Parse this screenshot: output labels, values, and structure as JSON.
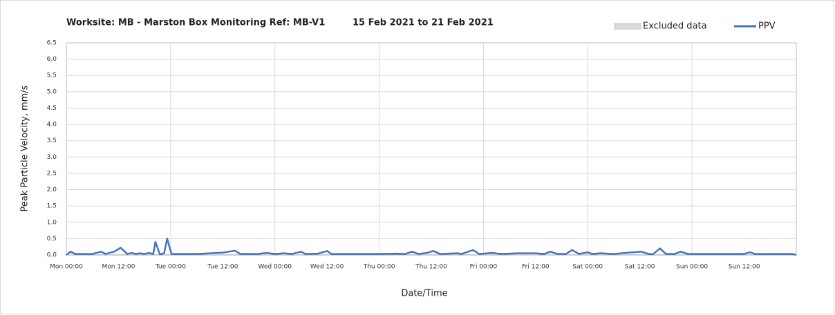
{
  "chart_data": {
    "type": "line",
    "title": "Worksite: MB - Marston Box",
    "subtitle": "Monitoring Ref: MB-V1",
    "date_range": "15 Feb 2021 to 21 Feb 2021",
    "xlabel": "Date/Time",
    "ylabel": "Peak Particle Velocity, mm/s",
    "excluded": {
      "name": "Excluded data",
      "color": "#d9d9d9"
    },
    "xlim": [
      0,
      168
    ],
    "xticks": [
      {
        "value": 0,
        "label": "Mon 00:00"
      },
      {
        "value": 12,
        "label": "Mon 12:00"
      },
      {
        "value": 24,
        "label": "Tue 00:00"
      },
      {
        "value": 36,
        "label": "Tue 12:00"
      },
      {
        "value": 48,
        "label": "Wed 00:00"
      },
      {
        "value": 60,
        "label": "Wed 12:00"
      },
      {
        "value": 72,
        "label": "Thu 00:00"
      },
      {
        "value": 84,
        "label": "Thu 12:00"
      },
      {
        "value": 96,
        "label": "Fri 00:00"
      },
      {
        "value": 108,
        "label": "Fri 12:00"
      },
      {
        "value": 120,
        "label": "Sat 00:00"
      },
      {
        "value": 132,
        "label": "Sat 12:00"
      },
      {
        "value": 144,
        "label": "Sun 00:00"
      },
      {
        "value": 156,
        "label": "Sun 12:00"
      }
    ],
    "ylim": [
      0,
      6.5
    ],
    "yticks": [
      {
        "value": 0,
        "label": "0.0"
      },
      0.5,
      {
        "value": 1,
        "label": "1.0"
      },
      1.5,
      {
        "value": 2,
        "label": "2.0"
      },
      2.5,
      {
        "value": 3,
        "label": "3.0"
      },
      3.5,
      {
        "value": 4,
        "label": "4.0"
      },
      4.5,
      {
        "value": 5,
        "label": "5.0"
      },
      5.5,
      {
        "value": 6,
        "label": "6.0"
      },
      6.5
    ],
    "grid": true,
    "x": [
      0,
      1,
      2,
      6,
      8,
      9,
      11,
      12.5,
      14,
      15,
      16,
      17,
      18,
      19,
      20,
      20.5,
      21.5,
      22.5,
      23.2,
      24.2,
      26,
      30,
      36,
      38.8,
      40,
      44,
      46,
      48,
      50,
      52,
      54,
      55,
      58,
      60,
      61,
      66,
      72,
      76,
      78,
      79.6,
      81,
      83,
      84.4,
      86,
      90,
      91,
      93.6,
      95,
      98,
      100,
      104,
      108,
      110,
      111.4,
      113,
      115,
      116.4,
      118,
      120,
      121,
      123,
      126,
      132.3,
      134,
      135,
      136.6,
      138,
      140,
      141.4,
      143,
      150,
      156,
      157.3,
      158.5,
      167,
      168
    ],
    "series": [
      {
        "name": "PPV",
        "color": "#4472c4",
        "values": [
          0.0,
          0.1,
          0.03,
          0.03,
          0.1,
          0.03,
          0.1,
          0.22,
          0.03,
          0.06,
          0.03,
          0.05,
          0.03,
          0.06,
          0.03,
          0.4,
          0.02,
          0.05,
          0.5,
          0.03,
          0.03,
          0.03,
          0.07,
          0.13,
          0.03,
          0.03,
          0.06,
          0.03,
          0.05,
          0.03,
          0.1,
          0.03,
          0.04,
          0.12,
          0.03,
          0.03,
          0.03,
          0.04,
          0.03,
          0.1,
          0.03,
          0.06,
          0.12,
          0.03,
          0.05,
          0.03,
          0.15,
          0.03,
          0.06,
          0.03,
          0.05,
          0.05,
          0.03,
          0.1,
          0.03,
          0.03,
          0.15,
          0.03,
          0.08,
          0.03,
          0.05,
          0.03,
          0.1,
          0.03,
          0.02,
          0.2,
          0.03,
          0.03,
          0.1,
          0.03,
          0.03,
          0.03,
          0.08,
          0.03,
          0.03,
          0.0
        ]
      }
    ]
  }
}
